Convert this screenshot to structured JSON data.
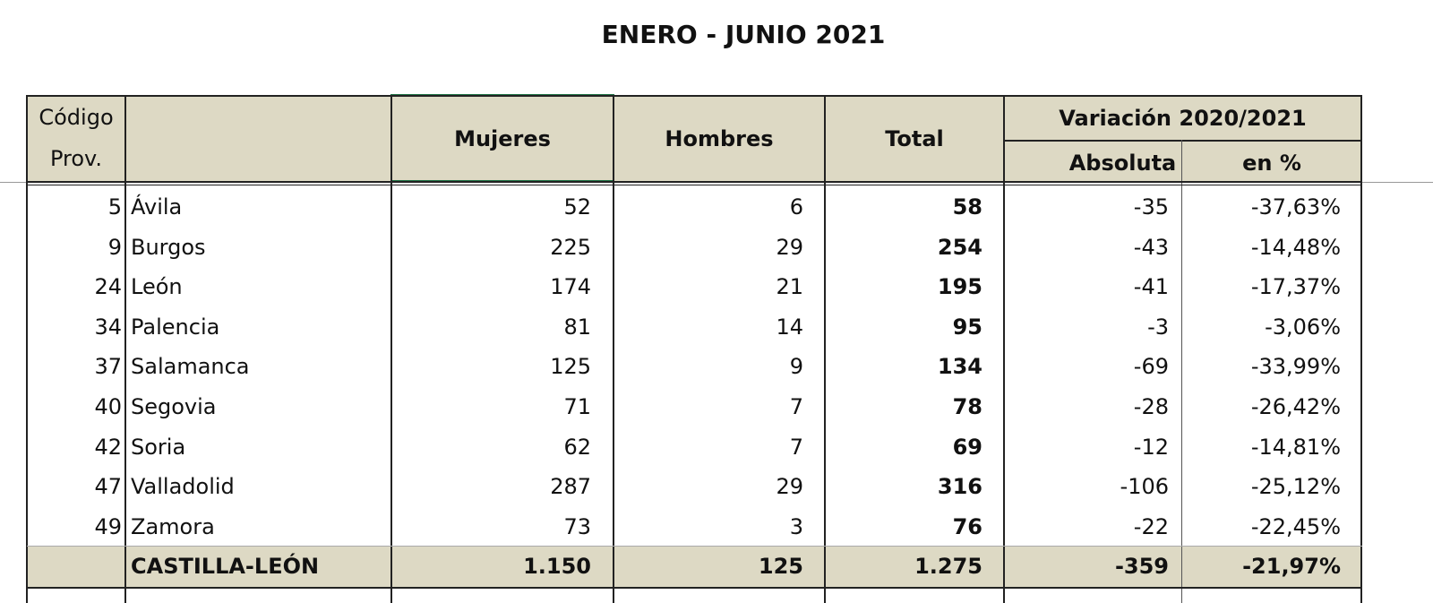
{
  "title": "ENERO - JUNIO 2021",
  "header": {
    "code": [
      "Código",
      "Prov."
    ],
    "mujeres": "Mujeres",
    "hombres": "Hombres",
    "total": "Total",
    "variacion": "Variación 2020/2021",
    "absoluta": "Absoluta",
    "pct": "en %"
  },
  "table": {
    "rows": [
      [
        "5",
        "Ávila",
        "52",
        "6",
        "58",
        "-35",
        "-37,63%"
      ],
      [
        "9",
        "Burgos",
        "225",
        "29",
        "254",
        "-43",
        "-14,48%"
      ],
      [
        "24",
        "León",
        "174",
        "21",
        "195",
        "-41",
        "-17,37%"
      ],
      [
        "34",
        "Palencia",
        "81",
        "14",
        "95",
        "-3",
        "-3,06%"
      ],
      [
        "37",
        "Salamanca",
        "125",
        "9",
        "134",
        "-69",
        "-33,99%"
      ],
      [
        "40",
        "Segovia",
        "71",
        "7",
        "78",
        "-28",
        "-26,42%"
      ],
      [
        "42",
        "Soria",
        "62",
        "7",
        "69",
        "-12",
        "-14,81%"
      ],
      [
        "47",
        "Valladolid",
        "287",
        "29",
        "316",
        "-106",
        "-25,12%"
      ],
      [
        "49",
        "Zamora",
        "73",
        "3",
        "76",
        "-22",
        "-22,45%"
      ]
    ],
    "total": {
      "name": "CASTILLA-LEÓN",
      "values": [
        "1.150",
        "125",
        "1.275",
        "-359",
        "-21,97%"
      ]
    }
  }
}
